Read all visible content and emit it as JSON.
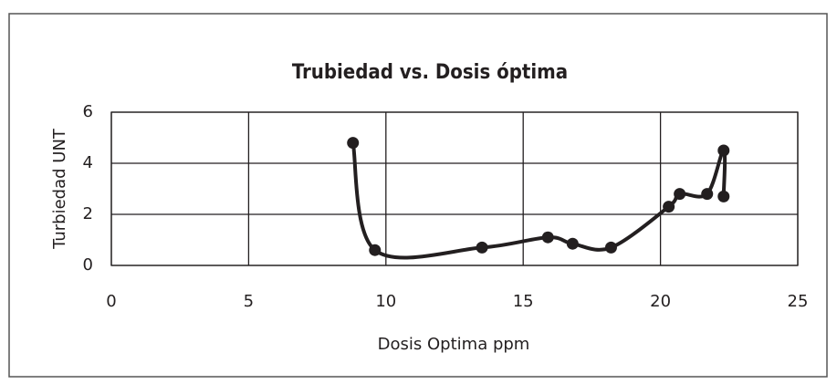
{
  "chart_data": {
    "type": "line",
    "title": "Trubiedad vs. Dosis óptima",
    "x_label": "Dosis Optima ppm",
    "y_label": "Turbiedad UNT",
    "x": [
      8.8,
      9.6,
      13.5,
      15.9,
      16.8,
      18.2,
      20.3,
      20.7,
      21.7,
      22.3,
      22.3
    ],
    "values": [
      4.8,
      0.6,
      0.7,
      1.1,
      0.85,
      0.7,
      2.3,
      2.8,
      2.8,
      4.5,
      2.7
    ],
    "color": "#231f20",
    "smooth": true,
    "xlim": [
      0,
      25
    ],
    "xticks": [
      0,
      5,
      10,
      15,
      20,
      25
    ],
    "ylim": [
      0,
      6
    ],
    "yticks": [
      0,
      2,
      4,
      6
    ],
    "grid": true
  }
}
